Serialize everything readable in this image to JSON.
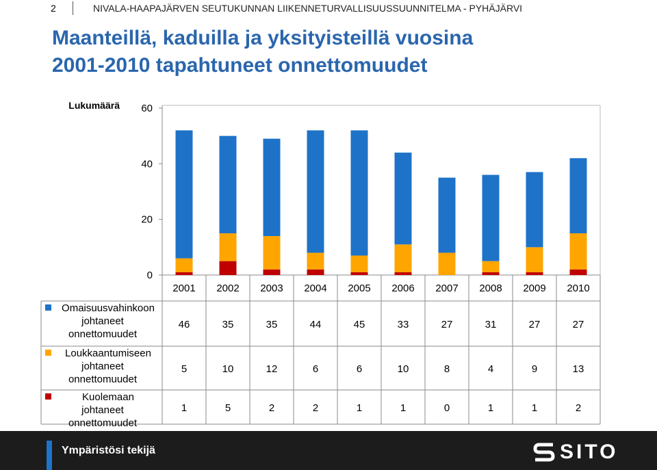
{
  "header": {
    "page_number": "2",
    "document_title": "NIVALA-HAAPAJÄRVEN SEUTUKUNNAN LIIKENNETURVALLISUUSSUUNNITELMA - PYHÄJÄRVI"
  },
  "slide": {
    "title_line1": "Maanteillä, kaduilla ja yksityisteillä vuosina",
    "title_line2": "2001-2010 tapahtuneet onnettomuudet"
  },
  "footer": {
    "slogan": "Ympäristösi tekijä",
    "logo_text": "SITO"
  },
  "colors": {
    "title": "#2a66ad",
    "property_damage": "#1e73c8",
    "injury": "#ffa500",
    "fatal": "#c00000",
    "footer_bg": "#1c1c1c"
  },
  "chart_data": {
    "type": "bar",
    "stacked": true,
    "ylabel": "Lukumäärä",
    "ylim": [
      0,
      60
    ],
    "yticks": [
      0,
      20,
      40,
      60
    ],
    "categories": [
      "2001",
      "2002",
      "2003",
      "2004",
      "2005",
      "2006",
      "2007",
      "2008",
      "2009",
      "2010"
    ],
    "series": [
      {
        "name": "Omaisuusvahinkoon johtaneet onnettomuudet",
        "color": "#1e73c8",
        "values": [
          46,
          35,
          35,
          44,
          45,
          33,
          27,
          31,
          27,
          27
        ]
      },
      {
        "name": "Loukkaantumiseen johtaneet onnettomuudet",
        "color": "#ffa500",
        "values": [
          5,
          10,
          12,
          6,
          6,
          10,
          8,
          4,
          9,
          13
        ]
      },
      {
        "name": "Kuolemaan johtaneet onnettomuudet",
        "color": "#c00000",
        "values": [
          1,
          5,
          2,
          2,
          1,
          1,
          0,
          1,
          1,
          2
        ]
      }
    ],
    "legend_position": "left, in data table",
    "grid": false,
    "data_table": true
  }
}
